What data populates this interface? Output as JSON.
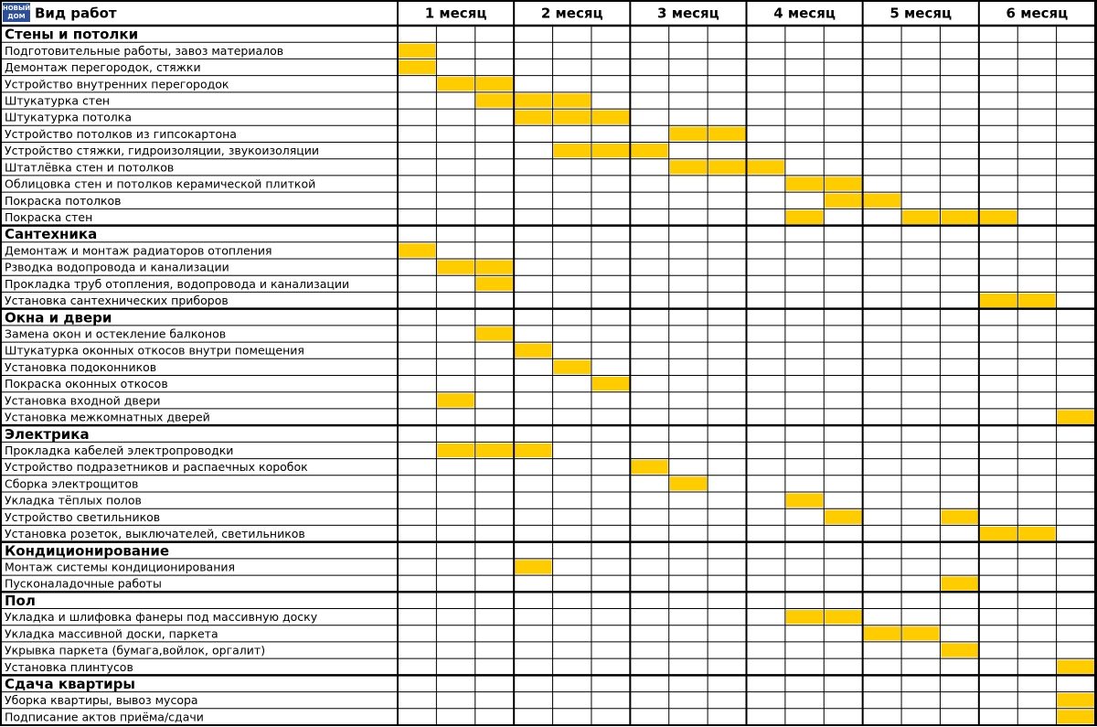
{
  "header": {
    "logo": [
      "НОВЫЙ",
      "ДОМ"
    ],
    "title": "Вид работ",
    "months": [
      "1 месяц",
      "2 месяц",
      "3 месяц",
      "4 месяц",
      "5 месяц",
      "6 месяц"
    ]
  },
  "sections": [
    {
      "title": "Стены и потолки",
      "rows": [
        {
          "label": "Подготовительные работы, завоз материалов",
          "cells": [
            0
          ]
        },
        {
          "label": "Демонтаж перегородок, стяжки",
          "cells": [
            0
          ]
        },
        {
          "label": "Устройство внутренних перегородок",
          "cells": [
            1,
            2
          ]
        },
        {
          "label": "Штукатурка стен",
          "cells": [
            2,
            3,
            4
          ]
        },
        {
          "label": "Штукатурка потолка",
          "cells": [
            3,
            4,
            5
          ]
        },
        {
          "label": "Устройство потолков из гипсокартона",
          "cells": [
            7,
            8
          ]
        },
        {
          "label": "Устройство стяжки, гидроизоляции, звукоизоляции",
          "cells": [
            4,
            5,
            6
          ]
        },
        {
          "label": "Штатлёвка стен и потолков",
          "cells": [
            7,
            8,
            9
          ]
        },
        {
          "label": "Облицовка стен и потолков керамической плиткой",
          "cells": [
            10,
            11
          ]
        },
        {
          "label": "Покраска потолков",
          "cells": [
            11,
            12
          ]
        },
        {
          "label": "Покраска стен",
          "cells": [
            10,
            13,
            14,
            15
          ]
        }
      ]
    },
    {
      "title": "Сантехника",
      "rows": [
        {
          "label": "Демонтаж и монтаж радиаторов отопления",
          "cells": [
            0
          ]
        },
        {
          "label": "Рзводка водопровода и канализации",
          "cells": [
            1,
            2
          ]
        },
        {
          "label": "Прокладка труб отопления, водопровода и канализации",
          "cells": [
            2
          ]
        },
        {
          "label": "Установка сантехнических приборов",
          "cells": [
            15,
            16
          ]
        }
      ]
    },
    {
      "title": "Окна и двери",
      "rows": [
        {
          "label": "Замена окон и остекление балконов",
          "cells": [
            2
          ]
        },
        {
          "label": "Штукатурка оконных откосов внутри помещения",
          "cells": [
            3
          ]
        },
        {
          "label": "Установка подоконников",
          "cells": [
            4
          ]
        },
        {
          "label": "Покраска оконных откосов",
          "cells": [
            5
          ]
        },
        {
          "label": "Установка входной двери",
          "cells": [
            1
          ]
        },
        {
          "label": "Установка межкомнатных дверей",
          "cells": [
            17
          ]
        }
      ]
    },
    {
      "title": "Электрика",
      "rows": [
        {
          "label": "Прокладка кабелей электропроводки",
          "cells": [
            1,
            2,
            3
          ]
        },
        {
          "label": "Устройство подразетников и распаечных коробок",
          "cells": [
            6
          ]
        },
        {
          "label": "Сборка электрощитов",
          "cells": [
            7
          ]
        },
        {
          "label": "Укладка тёплых полов",
          "cells": [
            10
          ]
        },
        {
          "label": "Устройство светильников",
          "cells": [
            11,
            14
          ]
        },
        {
          "label": "Установка розеток, выключателей, светильников",
          "cells": [
            15,
            16
          ]
        }
      ]
    },
    {
      "title": "Кондиционирование",
      "rows": [
        {
          "label": "Монтаж системы кондиционирования",
          "cells": [
            3
          ]
        },
        {
          "label": "Пусконаладочные работы",
          "cells": [
            14
          ]
        }
      ]
    },
    {
      "title": "Пол",
      "rows": [
        {
          "label": "Укладка и шлифовка фанеры под массивную доску",
          "cells": [
            10,
            11
          ]
        },
        {
          "label": "Укладка массивной доски, паркета",
          "cells": [
            12,
            13
          ]
        },
        {
          "label": "Укрывка паркета (бумага,войлок, оргалит)",
          "cells": [
            14
          ]
        },
        {
          "label": "Установка плинтусов",
          "cells": [
            17
          ]
        }
      ]
    },
    {
      "title": "Сдача квартиры",
      "rows": [
        {
          "label": "Уборка квартиры, вывоз мусора",
          "cells": [
            17
          ]
        },
        {
          "label": "Подписание актов приёма/сдачи",
          "cells": [
            17
          ]
        }
      ]
    }
  ]
}
